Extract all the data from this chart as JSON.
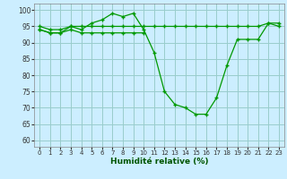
{
  "xlabel": "Humidité relative (%)",
  "background_color": "#cceeff",
  "grid_color": "#99cccc",
  "line_color": "#009900",
  "xlim": [
    -0.5,
    23.5
  ],
  "ylim": [
    58,
    102
  ],
  "yticks": [
    60,
    65,
    70,
    75,
    80,
    85,
    90,
    95,
    100
  ],
  "xticks": [
    0,
    1,
    2,
    3,
    4,
    5,
    6,
    7,
    8,
    9,
    10,
    11,
    12,
    13,
    14,
    15,
    16,
    17,
    18,
    19,
    20,
    21,
    22,
    23
  ],
  "series": [
    {
      "x": [
        0,
        1,
        2,
        3,
        4,
        5,
        6,
        7,
        8,
        9,
        10,
        11,
        12,
        13,
        14,
        15,
        16,
        17,
        18,
        19,
        20,
        21,
        22,
        23
      ],
      "y": [
        94,
        93,
        93,
        95,
        94,
        96,
        97,
        99,
        98,
        99,
        94,
        87,
        75,
        71,
        70,
        68,
        68,
        73,
        83,
        91,
        91,
        91,
        96,
        95
      ]
    },
    {
      "x": [
        0,
        1,
        2,
        3,
        4,
        5,
        6,
        7,
        8,
        9,
        10,
        11,
        12,
        13,
        14,
        15,
        16,
        17,
        18,
        19,
        20,
        21,
        22,
        23
      ],
      "y": [
        95,
        94,
        94,
        95,
        95,
        95,
        95,
        95,
        95,
        95,
        95,
        95,
        95,
        95,
        95,
        95,
        95,
        95,
        95,
        95,
        95,
        95,
        96,
        96
      ]
    },
    {
      "x": [
        0,
        1,
        2,
        3,
        4,
        5,
        6,
        7,
        8,
        9,
        10
      ],
      "y": [
        94,
        93,
        93,
        94,
        93,
        93,
        93,
        93,
        93,
        93,
        93
      ]
    }
  ]
}
